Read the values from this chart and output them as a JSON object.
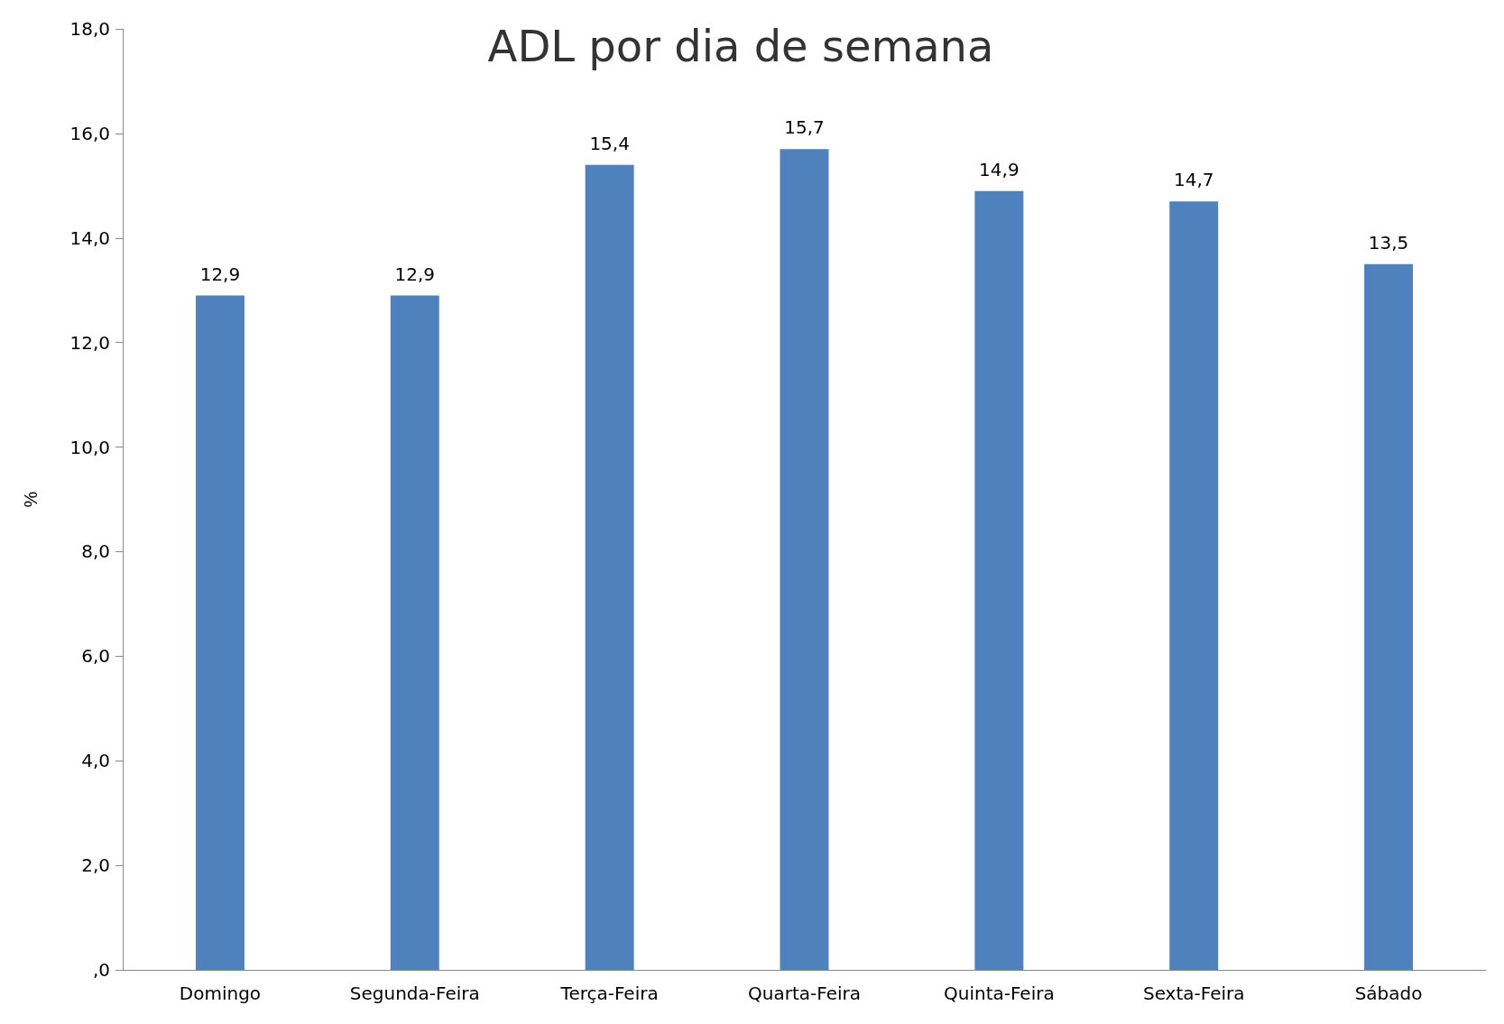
{
  "chart_data": {
    "type": "bar",
    "title": "ADL por dia de semana",
    "ylabel": "%",
    "categories": [
      "Domingo",
      "Segunda-Feira",
      "Terça-Feira",
      "Quarta-Feira",
      "Quinta-Feira",
      "Sexta-Feira",
      "Sábado"
    ],
    "values": [
      12.9,
      12.9,
      15.4,
      15.7,
      14.9,
      14.7,
      13.5
    ],
    "value_labels": [
      "12,9",
      "12,9",
      "15,4",
      "15,7",
      "14,9",
      "14,7",
      "13,5"
    ],
    "color": "#4f81bd",
    "ylim": [
      0,
      18
    ],
    "yticks": [
      {
        "value": 0,
        "label": ",0"
      },
      {
        "value": 2,
        "label": "2,0"
      },
      {
        "value": 4,
        "label": "4,0"
      },
      {
        "value": 6,
        "label": "6,0"
      },
      {
        "value": 8,
        "label": "8,0"
      },
      {
        "value": 10,
        "label": "10,0"
      },
      {
        "value": 12,
        "label": "12,0"
      },
      {
        "value": 14,
        "label": "14,0"
      },
      {
        "value": 16,
        "label": "16,0"
      },
      {
        "value": 18,
        "label": "18,0"
      }
    ],
    "grid": false
  }
}
